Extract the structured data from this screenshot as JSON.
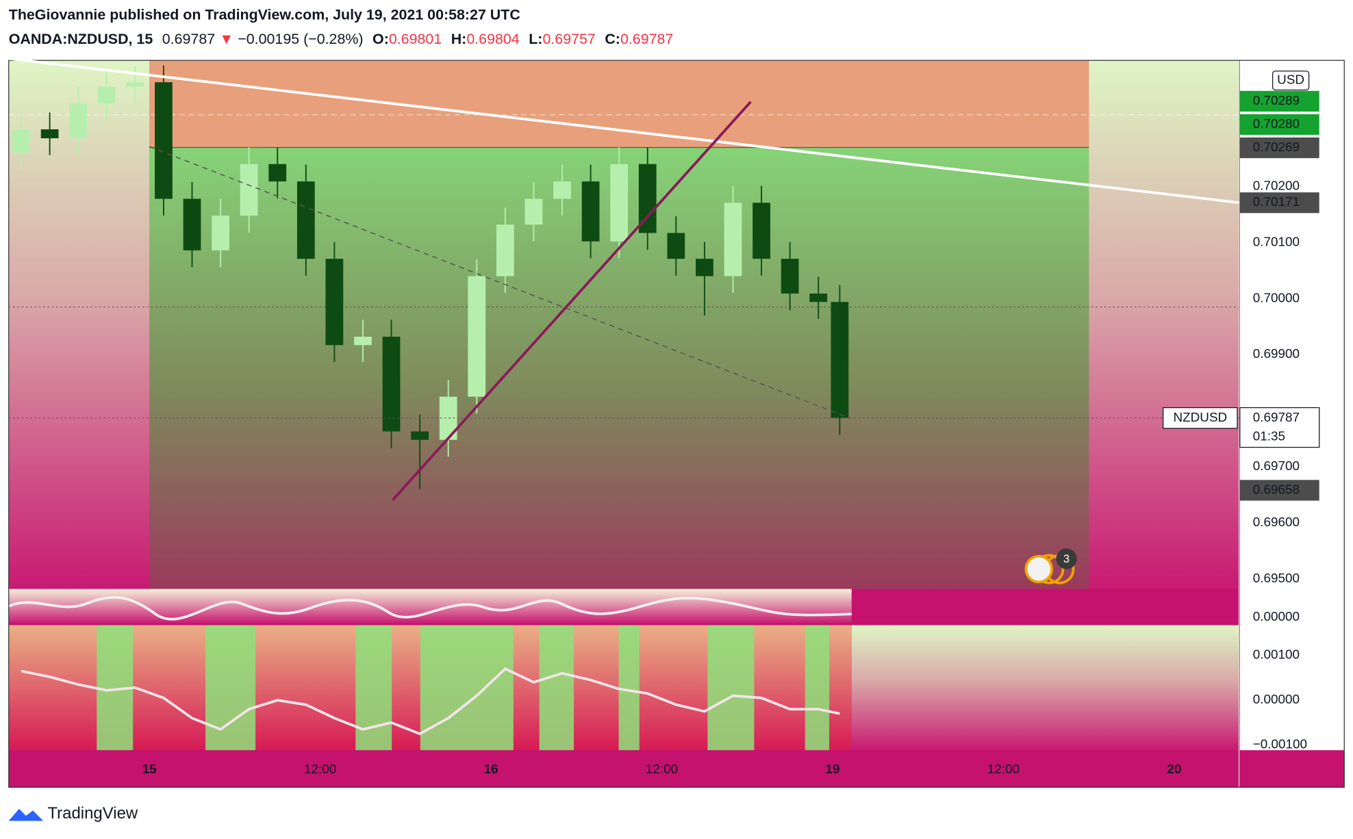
{
  "header": {
    "publisher": "TheGiovannie published on TradingView.com, July 19, 2021 00:58:27 UTC",
    "symbol": "OANDA:NZDUSD, 15",
    "last": "0.69787",
    "arrow": "▼",
    "change": "−0.00195 (−0.28%)",
    "ohlc": [
      {
        "key": "O:",
        "value": "0.69801"
      },
      {
        "key": "H:",
        "value": "0.69804"
      },
      {
        "key": "L:",
        "value": "0.69757"
      },
      {
        "key": "C:",
        "value": "0.69787"
      }
    ]
  },
  "chart_data": [
    {
      "type": "candlestick",
      "currency": "USD",
      "up_color": "#b6efad",
      "down_color": "#0e4b12",
      "x": [
        -9,
        -7,
        -5,
        -3,
        -1,
        1,
        3,
        5,
        7,
        9,
        11,
        13,
        15,
        17,
        19,
        21,
        23,
        25,
        27,
        29,
        31,
        33,
        35,
        37,
        39,
        41,
        43,
        45,
        47,
        48.5
      ],
      "open": [
        0.7026,
        0.70302,
        0.70286,
        0.70348,
        0.70378,
        0.70386,
        0.70178,
        0.70086,
        0.70148,
        0.7024,
        0.70209,
        0.70071,
        0.69917,
        0.69932,
        0.69763,
        0.69748,
        0.69825,
        0.7004,
        0.70132,
        0.70178,
        0.70209,
        0.70102,
        0.7024,
        0.70117,
        0.70071,
        0.7004,
        0.70171,
        0.70071,
        0.70009,
        0.69994
      ],
      "high": [
        0.70332,
        0.70332,
        0.70378,
        0.70408,
        0.70416,
        0.70416,
        0.70208,
        0.70178,
        0.7027,
        0.7027,
        0.70239,
        0.70101,
        0.69962,
        0.69962,
        0.69793,
        0.69855,
        0.7007,
        0.70162,
        0.70208,
        0.70239,
        0.70239,
        0.7027,
        0.7027,
        0.70147,
        0.70101,
        0.70201,
        0.70201,
        0.70101,
        0.70039,
        0.70024
      ],
      "low": [
        0.7023,
        0.70256,
        0.70256,
        0.70318,
        0.70348,
        0.70148,
        0.70056,
        0.70056,
        0.70118,
        0.70179,
        0.70041,
        0.69887,
        0.69887,
        0.69733,
        0.6966,
        0.69718,
        0.69795,
        0.7001,
        0.70102,
        0.70148,
        0.70072,
        0.70072,
        0.70087,
        0.70041,
        0.6997,
        0.7001,
        0.70041,
        0.69979,
        0.69964,
        0.69757
      ],
      "close": [
        0.70302,
        0.70286,
        0.70348,
        0.70378,
        0.70386,
        0.70178,
        0.70086,
        0.70148,
        0.7024,
        0.70209,
        0.70071,
        0.69917,
        0.69932,
        0.69763,
        0.69748,
        0.69825,
        0.7004,
        0.70132,
        0.70178,
        0.70209,
        0.70102,
        0.7024,
        0.70117,
        0.70071,
        0.7004,
        0.70171,
        0.70071,
        0.70009,
        0.69994,
        0.69787
      ],
      "xlim": [
        -9.88,
        76.55
      ],
      "xticks": [
        {
          "value": 0,
          "label": "15"
        },
        {
          "value": 12,
          "label": "12:00"
        },
        {
          "value": 24,
          "label": "16"
        },
        {
          "value": 36,
          "label": "12:00"
        },
        {
          "value": 48,
          "label": "19"
        },
        {
          "value": 60,
          "label": "12:00"
        },
        {
          "value": 72,
          "label": "20"
        }
      ],
      "ylim": [
        0.69482,
        0.70425
      ],
      "yticks": [
        {
          "value": 0.702,
          "label": "0.70200"
        },
        {
          "value": 0.701,
          "label": "0.70100"
        },
        {
          "value": 0.7,
          "label": "0.70000"
        },
        {
          "value": 0.699,
          "label": "0.69900"
        },
        {
          "value": 0.697,
          "label": "0.69700"
        },
        {
          "value": 0.696,
          "label": "0.69600"
        },
        {
          "value": 0.695,
          "label": "0.69500"
        }
      ],
      "price_labels": [
        {
          "value": 0.70289,
          "label": "0.70289",
          "color": "#14a32e"
        },
        {
          "value": 0.7028,
          "label": "0.70280",
          "color": "#14a32e"
        },
        {
          "value": 0.70269,
          "label": "0.70269",
          "color": "#4c4c4c"
        },
        {
          "value": 0.70171,
          "label": "0.70171",
          "color": "#4c4c4c"
        },
        {
          "value": 0.69787,
          "label": "0.69787",
          "color": "#ffffff",
          "symbol": "NZDUSD",
          "countdown": "01:35"
        },
        {
          "value": 0.69658,
          "label": "0.69658",
          "color": "#4c4c4c"
        }
      ],
      "events_badge": "3"
    },
    {
      "type": "line",
      "color": "#f3e4ea",
      "x": [
        -9,
        -7,
        -5,
        -3,
        -1,
        1,
        3,
        5,
        7,
        9,
        11,
        13,
        15,
        17,
        19,
        21,
        23,
        25,
        27,
        29,
        31,
        33,
        35,
        37,
        39,
        41,
        43,
        45,
        47,
        48.5
      ],
      "values": [
        0.00065,
        0.00052,
        0.00035,
        0.00022,
        0.00028,
        5e-05,
        -0.0004,
        -0.00065,
        -0.0002,
        0,
        -0.0001,
        -0.0004,
        -0.00065,
        -0.0005,
        -0.00075,
        -0.0004,
        0.0001,
        0.0007,
        0.0004,
        0.0006,
        0.00045,
        0.00025,
        0.00015,
        -0.0001,
        -0.00025,
        0.0001,
        5e-05,
        -0.0002,
        -0.0002,
        -0.0003
      ],
      "ylim": [
        -0.001115,
        0.001673
      ],
      "yticks": [
        {
          "value": 0.001,
          "label": "0.00100"
        },
        {
          "value": 0,
          "label": "0.00000"
        },
        {
          "value": -0.001,
          "label": "−0.00100"
        }
      ]
    },
    {
      "type": "oscillator",
      "yticks": [
        {
          "value": 0,
          "label": "0.00000"
        }
      ]
    }
  ],
  "footer": {
    "brand": "TradingView"
  }
}
